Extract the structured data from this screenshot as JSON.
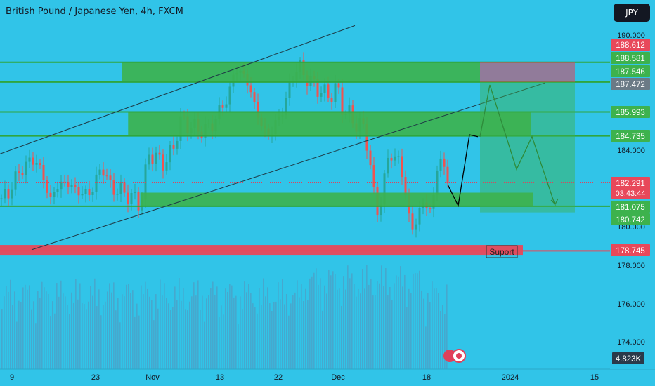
{
  "header": {
    "title": "British Pound / Japanese Yen, 4h, FXCM",
    "currency_button": "JPY"
  },
  "colors": {
    "background": "#31c4e8",
    "zone_green": "#3db24d",
    "zone_green_line": "#2fa63f",
    "stop_red": "#e0405a",
    "support_red": "#e8485a",
    "candle_up": "#26a69a",
    "candle_down": "#ef5350",
    "volume": "#4aa3c9"
  },
  "chart_data": {
    "type": "candlestick",
    "title": "British Pound / Japanese Yen, 4h, FXCM",
    "symbol": "GBPJPY",
    "timeframe": "4h",
    "source": "FXCM",
    "y_axis": {
      "ticks": [
        "190.000",
        "184.000",
        "180.000",
        "178.000",
        "176.000",
        "174.000"
      ],
      "range": [
        172.8,
        190.6
      ]
    },
    "x_axis": {
      "ticks": [
        "9",
        "23",
        "Nov",
        "13",
        "22",
        "Dec",
        "18",
        "2024",
        "15"
      ]
    },
    "price_labels": [
      {
        "text": "188.612",
        "value": 188.612,
        "style": "red"
      },
      {
        "text": "188.581",
        "value": 188.581,
        "style": "green"
      },
      {
        "text": "187.546",
        "value": 187.546,
        "style": "green"
      },
      {
        "text": "187.472",
        "value": 187.472,
        "style": "gray"
      },
      {
        "text": "185.993",
        "value": 185.993,
        "style": "green"
      },
      {
        "text": "184.735",
        "value": 184.735,
        "style": "green"
      },
      {
        "text": "182.291",
        "value": 182.291,
        "style": "red",
        "sub": "03:43:44"
      },
      {
        "text": "181.075",
        "value": 181.075,
        "style": "green"
      },
      {
        "text": "180.742",
        "value": 180.742,
        "style": "green"
      },
      {
        "text": "178.745",
        "value": 178.745,
        "style": "red"
      }
    ],
    "volume_label": "4.823K",
    "horizontal_lines": [
      188.58,
      187.55,
      185.99,
      184.74,
      181.07
    ],
    "zones": [
      {
        "from": 187.55,
        "to": 188.58,
        "start_x_frac": 0.2
      },
      {
        "from": 184.74,
        "to": 185.99,
        "start_x_frac": 0.21
      },
      {
        "from": 181.07,
        "to": 181.78,
        "start_x_frac": 0.23
      },
      {
        "from": 178.5,
        "to": 179.05,
        "start_x_frac": 0.0,
        "color": "red",
        "label": "Suport"
      }
    ],
    "annotation_text": "Suport",
    "channel": [
      {
        "line": "upper",
        "from": [
          0,
          183.8
        ],
        "to": [
          0.58,
          190.5
        ]
      },
      {
        "line": "lower",
        "from": [
          0.05,
          178.8
        ],
        "to": [
          0.89,
          187.5
        ]
      }
    ],
    "position": {
      "entry": 187.55,
      "stop": 188.58,
      "target": 180.75
    },
    "projection_black": [
      [
        182.2
      ],
      [
        181.1
      ],
      [
        184.8
      ],
      [
        184.7
      ]
    ],
    "projection_green": [
      [
        184.7
      ],
      [
        187.4
      ],
      [
        183.0
      ],
      [
        184.7
      ],
      [
        181.1
      ]
    ]
  }
}
